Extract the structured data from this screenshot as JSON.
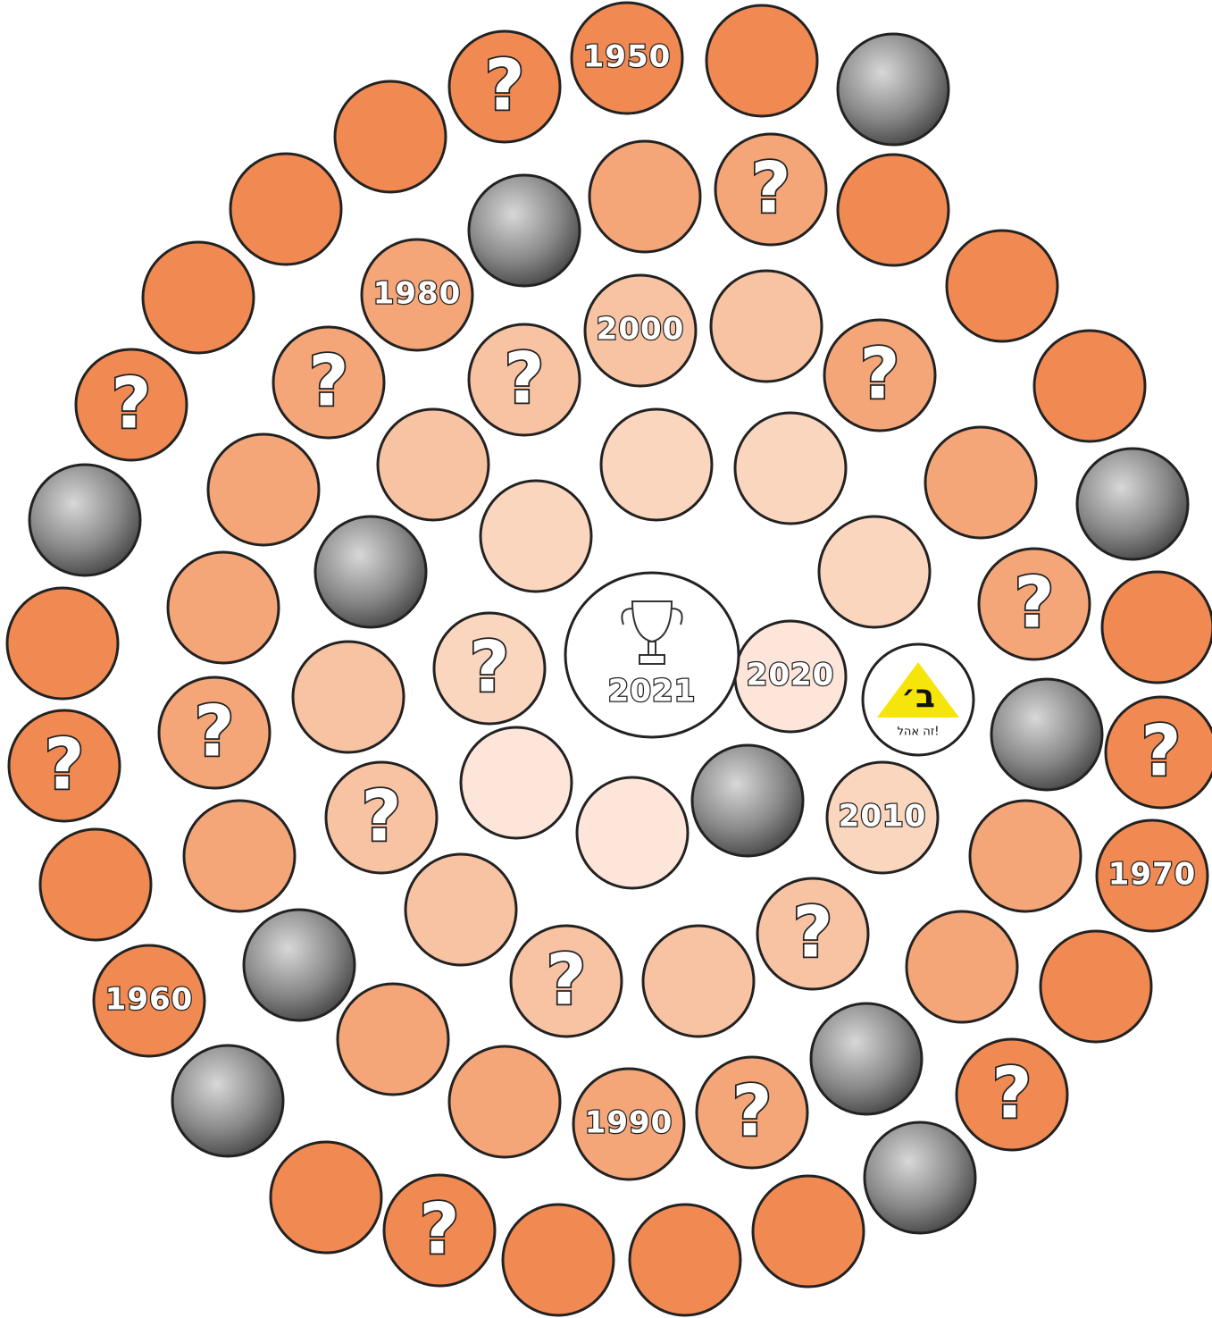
{
  "board": {
    "question_mark": "?",
    "center_label": "2021",
    "year_labels": [
      "1950",
      "1960",
      "1970",
      "1980",
      "1990",
      "2000",
      "2010",
      "2020"
    ],
    "logo": {
      "letter": "ב׳",
      "caption": "זה אהל!"
    }
  }
}
